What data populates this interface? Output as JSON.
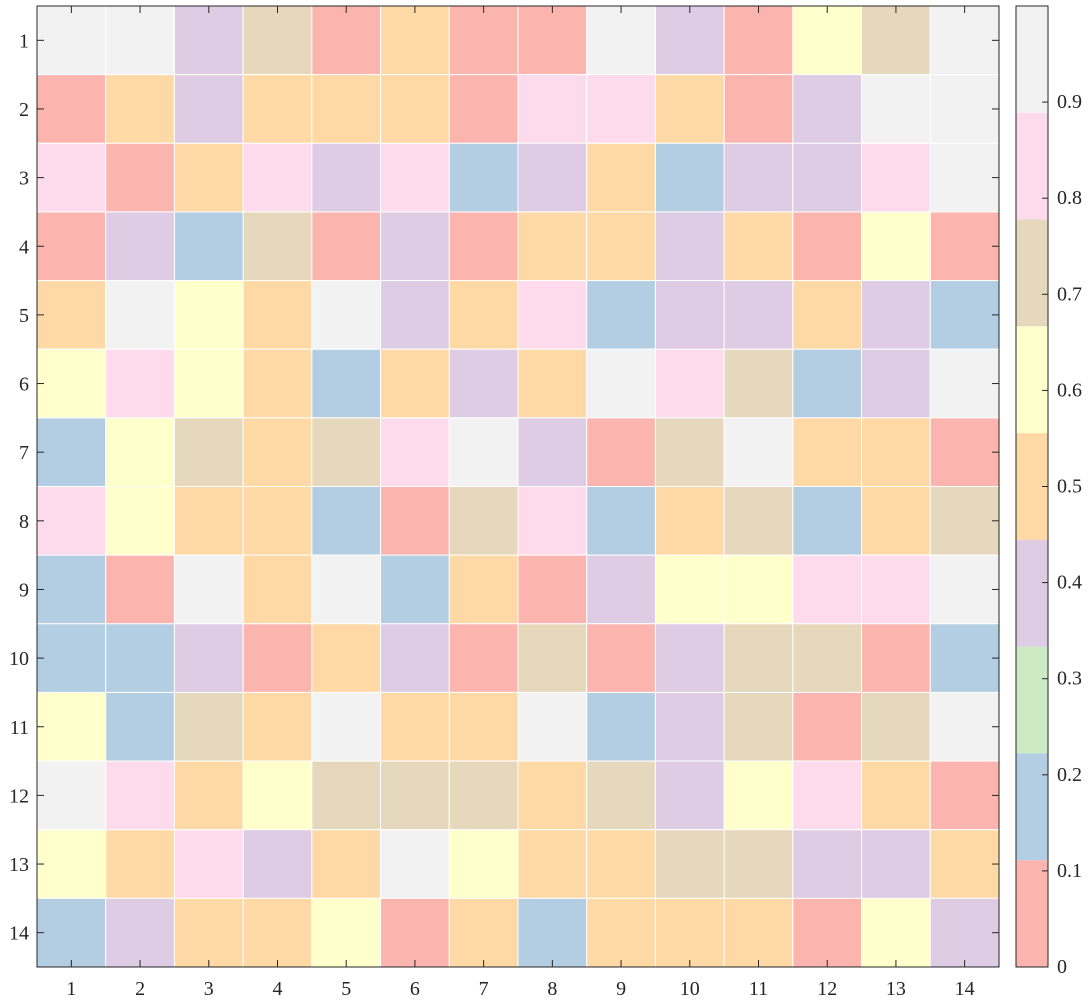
{
  "chart_data": {
    "type": "heatmap",
    "title": "",
    "xlabel": "",
    "ylabel": "",
    "x_categories": [
      "1",
      "2",
      "3",
      "4",
      "5",
      "6",
      "7",
      "8",
      "9",
      "10",
      "11",
      "12",
      "13",
      "14"
    ],
    "y_categories": [
      "1",
      "2",
      "3",
      "4",
      "5",
      "6",
      "7",
      "8",
      "9",
      "10",
      "11",
      "12",
      "13",
      "14"
    ],
    "values": [
      [
        0.95,
        0.95,
        0.35,
        0.75,
        0.05,
        0.45,
        0.05,
        0.05,
        0.95,
        0.35,
        0.05,
        0.65,
        0.75,
        0.95
      ],
      [
        0.05,
        0.45,
        0.35,
        0.45,
        0.55,
        0.55,
        0.05,
        0.85,
        0.85,
        0.55,
        0.05,
        0.35,
        0.95,
        0.95
      ],
      [
        0.85,
        0.05,
        0.45,
        0.85,
        0.35,
        0.85,
        0.15,
        0.35,
        0.55,
        0.15,
        0.35,
        0.35,
        0.85,
        0.95
      ],
      [
        0.05,
        0.35,
        0.15,
        0.75,
        0.05,
        0.35,
        0.05,
        0.55,
        0.45,
        0.35,
        0.45,
        0.05,
        0.65,
        0.05
      ],
      [
        0.45,
        0.95,
        0.65,
        0.45,
        0.95,
        0.35,
        0.55,
        0.85,
        0.15,
        0.35,
        0.35,
        0.45,
        0.35,
        0.15
      ],
      [
        0.65,
        0.85,
        0.65,
        0.45,
        0.15,
        0.45,
        0.35,
        0.55,
        0.95,
        0.85,
        0.75,
        0.15,
        0.35,
        0.95
      ],
      [
        0.15,
        0.65,
        0.75,
        0.45,
        0.75,
        0.85,
        0.95,
        0.35,
        0.05,
        0.75,
        0.95,
        0.45,
        0.45,
        0.05
      ],
      [
        0.85,
        0.65,
        0.45,
        0.45,
        0.15,
        0.05,
        0.75,
        0.85,
        0.15,
        0.45,
        0.75,
        0.15,
        0.45,
        0.75
      ],
      [
        0.15,
        0.05,
        0.95,
        0.45,
        0.95,
        0.15,
        0.55,
        0.05,
        0.35,
        0.65,
        0.65,
        0.85,
        0.85,
        0.95
      ],
      [
        0.15,
        0.15,
        0.35,
        0.05,
        0.55,
        0.35,
        0.05,
        0.75,
        0.05,
        0.35,
        0.75,
        0.75,
        0.05,
        0.15
      ],
      [
        0.65,
        0.15,
        0.75,
        0.45,
        0.95,
        0.45,
        0.55,
        0.95,
        0.15,
        0.35,
        0.75,
        0.05,
        0.75,
        0.95
      ],
      [
        0.95,
        0.85,
        0.45,
        0.65,
        0.75,
        0.75,
        0.75,
        0.55,
        0.75,
        0.35,
        0.65,
        0.85,
        0.45,
        0.05
      ],
      [
        0.65,
        0.45,
        0.85,
        0.35,
        0.55,
        0.95,
        0.65,
        0.55,
        0.55,
        0.75,
        0.75,
        0.35,
        0.35,
        0.45
      ],
      [
        0.15,
        0.35,
        0.45,
        0.45,
        0.65,
        0.05,
        0.45,
        0.15,
        0.45,
        0.55,
        0.45,
        0.05,
        0.65,
        0.35
      ]
    ],
    "colorbar": {
      "range": [
        0,
        1
      ],
      "ticks": [
        "0",
        "0.1",
        "0.2",
        "0.3",
        "0.4",
        "0.5",
        "0.6",
        "0.7",
        "0.8",
        "0.9"
      ],
      "colors": [
        "#fbb4ae",
        "#b3cde3",
        "#ccebc5",
        "#decbe4",
        "#fed9a6",
        "#ffffcc",
        "#e5d8bd",
        "#fddaec",
        "#f2f2f2"
      ]
    },
    "grid": true,
    "colormap": "Pastel1"
  }
}
